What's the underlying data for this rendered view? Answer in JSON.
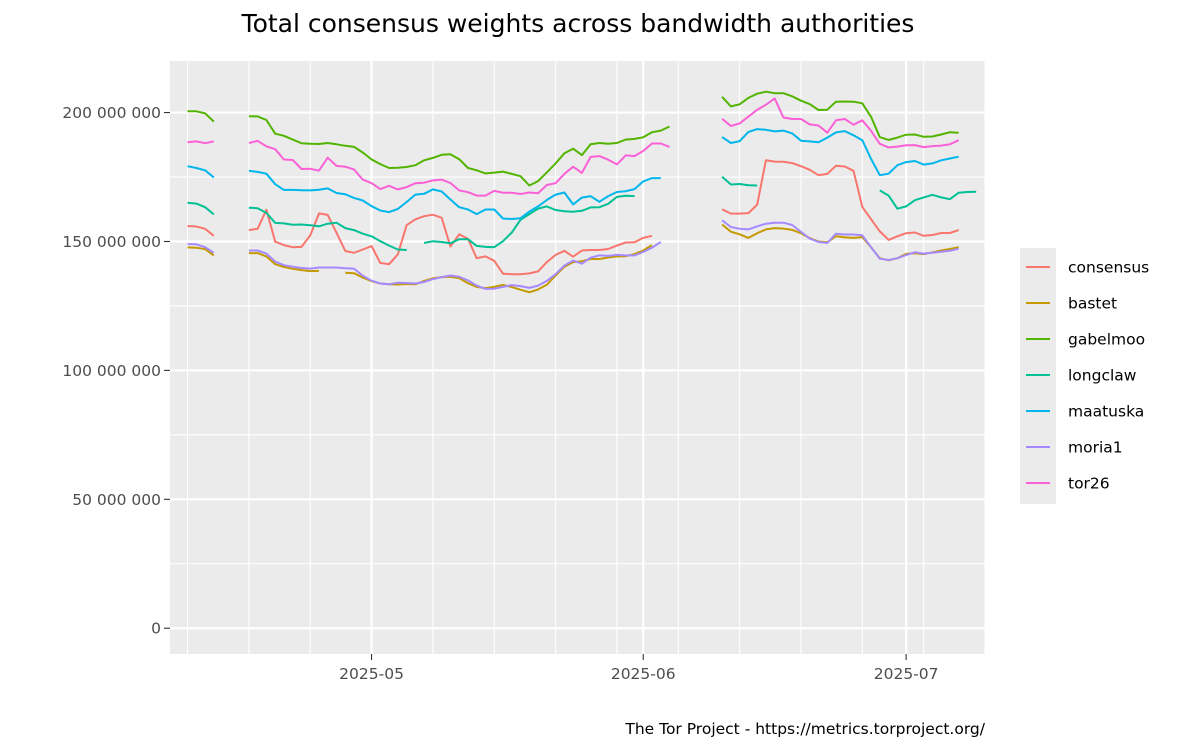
{
  "chart_data": {
    "type": "line",
    "title": "Total consensus weights across bandwidth authorities",
    "xlabel": "",
    "ylabel": "",
    "caption": "The Tor Project - https://metrics.torproject.org/",
    "x_range": [
      "2025-04-08",
      "2025-07-10"
    ],
    "ylim": [
      -10000000,
      220000000
    ],
    "y_ticks": [
      {
        "value": 0,
        "label": "0"
      },
      {
        "value": 50000000,
        "label": "50 000 000"
      },
      {
        "value": 100000000,
        "label": "100 000 000"
      },
      {
        "value": 150000000,
        "label": "150 000 000"
      },
      {
        "value": 200000000,
        "label": "200 000 000"
      }
    ],
    "x_ticks": [
      {
        "date": "2025-05-01",
        "label": "2025-05"
      },
      {
        "date": "2025-06-01",
        "label": "2025-06"
      },
      {
        "date": "2025-07-01",
        "label": "2025-07"
      }
    ],
    "grid": true,
    "legend_position": "right",
    "series": [
      {
        "name": "consensus",
        "color": "#F8766D",
        "segments": [
          {
            "start": "2025-04-10",
            "values": [
              156,
              155.8,
              154.9,
              152.2
            ]
          },
          {
            "start": "2025-04-17",
            "values": [
              154.4,
              154.9,
              162.3,
              149.9,
              148.6,
              147.8,
              147.9,
              152.3,
              160.9,
              160.3,
              153.4,
              146.3,
              145.6,
              146.9,
              148.2,
              141.7,
              141.2,
              145,
              156.3,
              158.6,
              159.8,
              160.4,
              159.2,
              148,
              152.8,
              151,
              143.5,
              144.2,
              142.5,
              137.5,
              137.3,
              137.3,
              137.6,
              138.4,
              142,
              144.8,
              146.4,
              144.1,
              146.5,
              146.7,
              146.7,
              147.1,
              148.4,
              149.6,
              149.7,
              151.4,
              152.2
            ]
          },
          {
            "start": "2025-06-10",
            "values": [
              162.5,
              160.8,
              160.8,
              161,
              164.3,
              181.5,
              181,
              180.9,
              180.4,
              179.2,
              177.8,
              175.7,
              176.2,
              179.4,
              179.1,
              177.4,
              163.4,
              158.6,
              153.9,
              150.6,
              152,
              153.2,
              153.5,
              152.2,
              152.5,
              153.3,
              153.3,
              154.4
            ]
          }
        ]
      },
      {
        "name": "bastet",
        "color": "#C49A00",
        "segments": [
          {
            "start": "2025-04-10",
            "values": [
              147.7,
              147.6,
              147,
              144.6
            ]
          },
          {
            "start": "2025-04-17",
            "values": [
              145.5,
              145.5,
              144.2,
              141.2,
              140.1,
              139.4,
              138.9,
              138.5,
              138.6
            ]
          },
          {
            "start": "2025-04-28",
            "values": [
              137.9,
              137.7,
              136,
              134.6,
              133.7,
              133.4,
              133.3,
              133.5,
              133.4,
              134.7,
              135.7,
              136.2,
              136.3,
              135.8,
              133.8,
              132.4,
              131.9,
              132.4,
              133.2,
              132.3,
              131.3,
              130.3,
              131.4,
              133.2,
              136.8,
              140.2,
              142,
              142.3,
              143.2,
              143.2,
              143.8,
              144.2,
              144.3,
              145.1,
              146.5,
              148.6
            ]
          },
          {
            "start": "2025-06-10",
            "values": [
              156.6,
              153.8,
              152.8,
              151.4,
              153.2,
              154.7,
              155.2,
              155,
              154.5,
              153.2,
              151.3,
              150,
              149.7,
              152.1,
              151.6,
              151.4,
              151.7,
              147.7,
              143.5,
              142.7,
              143.5,
              145.2,
              145.4,
              145.1,
              145.8,
              146.5,
              147.1,
              147.8
            ]
          }
        ]
      },
      {
        "name": "gabelmoo",
        "color": "#53B400",
        "segments": [
          {
            "start": "2025-04-10",
            "values": [
              200.5,
              200.5,
              199.7,
              196.5
            ]
          },
          {
            "start": "2025-04-17",
            "values": [
              198.6,
              198.5,
              197.1,
              191.8,
              191,
              189.5,
              188.1,
              187.9,
              187.8,
              188.2,
              187.7,
              187.1,
              186.7,
              184.5,
              181.8,
              180,
              178.5,
              178.6,
              178.9,
              179.6,
              181.5,
              182.4,
              183.6,
              183.8,
              181.9,
              178.5,
              177.6,
              176.4,
              176.7,
              177.1,
              176.2,
              175.3,
              171.7,
              173.4,
              176.8,
              180.3,
              184.2,
              186,
              183.5,
              187.7,
              188.2,
              187.9,
              188.2,
              189.5,
              189.8,
              190.4,
              192.4,
              193,
              194.6
            ]
          },
          {
            "start": "2025-06-10",
            "values": [
              206.1,
              202.4,
              203.2,
              205.7,
              207.3,
              208.1,
              207.5,
              207.5,
              206.3,
              204.6,
              203.3,
              201,
              201.1,
              204.2,
              204.3,
              204.2,
              203.6,
              198.3,
              190.5,
              189.4,
              190.3,
              191.4,
              191.5,
              190.6,
              190.7,
              191.5,
              192.4,
              192.2
            ]
          }
        ]
      },
      {
        "name": "longclaw",
        "color": "#00C094",
        "segments": [
          {
            "start": "2025-04-10",
            "values": [
              165,
              164.7,
              163.3,
              160.5
            ]
          },
          {
            "start": "2025-04-17",
            "values": [
              163.1,
              162.9,
              161.1,
              157.2,
              157,
              156.5,
              156.6,
              156.3,
              155.9,
              156.9,
              157.3,
              155.2,
              154.4,
              153,
              152,
              150.1,
              148.4,
              146.9,
              146.7
            ]
          },
          {
            "start": "2025-05-07",
            "values": [
              149.4,
              150.1,
              149.8,
              149.3,
              150.9,
              150.9,
              148.3,
              147.9,
              147.8,
              150.1,
              153.5,
              158.4,
              160.6,
              162.7,
              163.6,
              162.2,
              161.7,
              161.5,
              161.9,
              163.2,
              163.3,
              164.6,
              167.3,
              167.7,
              167.6
            ]
          },
          {
            "start": "2025-06-10",
            "values": [
              175.1,
              172.1,
              172.3,
              171.8,
              171.7
            ]
          },
          {
            "start": "2025-06-28",
            "values": [
              169.8,
              167.8,
              162.7,
              163.6,
              166,
              167.1,
              168.1,
              167.1,
              166.4,
              168.9,
              169.2,
              169.3
            ]
          }
        ]
      },
      {
        "name": "maatuska",
        "color": "#00B6EB",
        "segments": [
          {
            "start": "2025-04-10",
            "values": [
              179.2,
              178.5,
              177.6,
              174.8
            ]
          },
          {
            "start": "2025-04-17",
            "values": [
              177.4,
              177,
              176.3,
              172.2,
              170,
              170,
              169.9,
              169.8,
              170.1,
              170.6,
              168.8,
              168.3,
              166.9,
              165.9,
              163.7,
              162,
              161.4,
              162.6,
              165.3,
              168.2,
              168.5,
              170.2,
              169.4,
              166.3,
              163.3,
              162.4,
              160.6,
              162.4,
              162.4,
              158.9,
              158.7,
              159,
              161.6,
              163.6,
              166.1,
              168.2,
              169,
              164.4,
              167,
              167.6,
              165.4,
              167.6,
              169.2,
              169.5,
              170.3,
              173.3,
              174.6,
              174.6
            ]
          },
          {
            "start": "2025-06-10",
            "values": [
              190.5,
              188.2,
              188.9,
              192.5,
              193.6,
              193.3,
              192.7,
              193,
              191.9,
              189.1,
              188.8,
              188.5,
              190.3,
              192.3,
              192.8,
              191.2,
              189.3,
              182,
              175.7,
              176.3,
              179.6,
              180.8,
              181.2,
              179.8,
              180.3,
              181.5,
              182.2,
              182.9
            ]
          }
        ]
      },
      {
        "name": "moria1",
        "color": "#A58AFF",
        "segments": [
          {
            "start": "2025-04-10",
            "values": [
              149,
              148.9,
              147.8,
              145.6
            ]
          },
          {
            "start": "2025-04-17",
            "values": [
              146.5,
              146.5,
              145.3,
              142.2,
              140.8,
              140.2,
              139.7,
              139.5,
              139.9,
              139.9,
              139.9,
              139.6,
              139.5,
              136.7,
              134.8,
              133.7,
              133.4,
              134,
              133.9,
              133.7,
              134.3,
              135.4,
              136.2,
              136.8,
              136.3,
              134.9,
              132.9,
              131.6,
              131.7,
              132.4,
              133.1,
              132.7,
              132,
              132.9,
              134.7,
              137.3,
              140.7,
              142.6,
              141.4,
              143.7,
              144.6,
              144.4,
              144.8,
              144.6,
              144.6,
              145.9,
              147.6,
              149.8
            ]
          },
          {
            "start": "2025-06-10",
            "values": [
              158.2,
              155.6,
              154.9,
              154.7,
              155.9,
              156.9,
              157.3,
              157.3,
              156.4,
              153.7,
              151.1,
              149.8,
              149.4,
              153,
              152.7,
              152.7,
              152.4,
              147.8,
              143.3,
              142.8,
              143.5,
              144.7,
              145.8,
              145.3,
              145.6,
              146,
              146.4,
              147.2
            ]
          }
        ]
      },
      {
        "name": "tor26",
        "color": "#FB61D7",
        "segments": [
          {
            "start": "2025-04-10",
            "values": [
              188.5,
              188.8,
              188.1,
              188.8
            ]
          },
          {
            "start": "2025-04-17",
            "values": [
              188.2,
              189,
              186.9,
              185.8,
              181.8,
              181.6,
              178.1,
              178.2,
              177.5,
              182.5,
              179.3,
              179,
              177.9,
              174,
              172.6,
              170.3,
              171.6,
              170.2,
              171.1,
              172.6,
              172.8,
              173.7,
              174,
              172.7,
              169.8,
              169.1,
              167.8,
              167.8,
              169.6,
              168.9,
              168.9,
              168.4,
              169,
              168.7,
              171.9,
              172.6,
              176.2,
              179,
              176.6,
              182.8,
              183.1,
              181.7,
              179.9,
              183.4,
              183.1,
              185.1,
              188,
              188,
              186.7
            ]
          },
          {
            "start": "2025-06-10",
            "values": [
              197.6,
              194.8,
              195.8,
              198.4,
              201.1,
              203,
              205.5,
              198.1,
              197.5,
              197.5,
              195.4,
              195,
              192.2,
              197,
              197.5,
              195.3,
              197,
              192.9,
              187.9,
              186.5,
              186.8,
              187.3,
              187.4,
              186.6,
              187,
              187.2,
              187.7,
              189.3
            ]
          }
        ]
      }
    ]
  }
}
